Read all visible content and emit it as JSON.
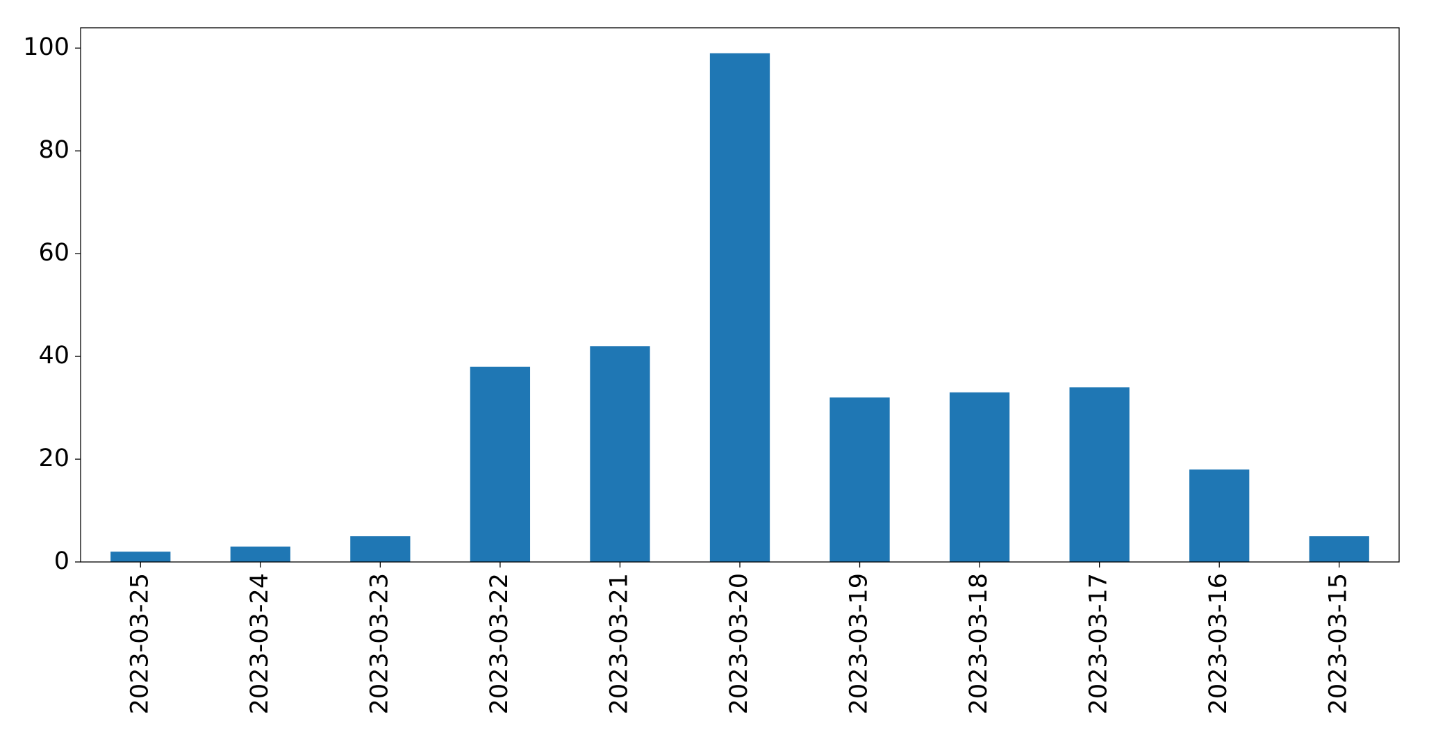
{
  "chart_data": {
    "type": "bar",
    "categories": [
      "2023-03-25",
      "2023-03-24",
      "2023-03-23",
      "2023-03-22",
      "2023-03-21",
      "2023-03-20",
      "2023-03-19",
      "2023-03-18",
      "2023-03-17",
      "2023-03-16",
      "2023-03-15"
    ],
    "values": [
      2,
      3,
      5,
      38,
      42,
      99,
      32,
      33,
      34,
      18,
      5
    ],
    "color": "#1f77b4",
    "ylim": [
      0,
      103.95
    ],
    "yticks": [
      0,
      20,
      40,
      60,
      80,
      100
    ],
    "grid": false
  }
}
